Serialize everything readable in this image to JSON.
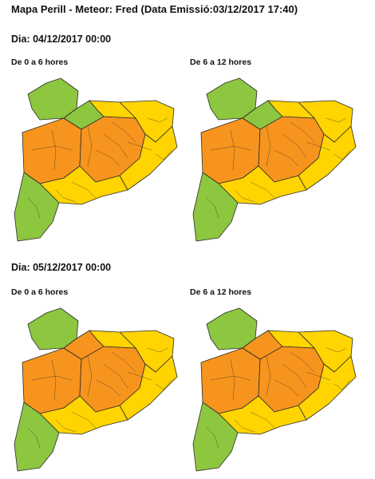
{
  "title": "Mapa Perill - Meteor: Fred (Data Emissió:03/12/2017 17:40)",
  "days": [
    {
      "label": "Dia: 04/12/2017 00:00",
      "periods": [
        {
          "label": "De 0 a 6 hores",
          "map": {
            "zones": {
              "nw": "green",
              "nw2": "green",
              "pyrenees_e": "yellow",
              "west": "orange",
              "center": "orange",
              "east": "yellow",
              "coast": "yellow",
              "ebre": "green",
              "south": "yellow"
            }
          }
        },
        {
          "label": "De 6 a 12 hores",
          "map": {
            "zones": {
              "nw": "green",
              "nw2": "green",
              "pyrenees_e": "yellow",
              "west": "orange",
              "center": "orange",
              "east": "yellow",
              "coast": "yellow",
              "ebre": "green",
              "south": "yellow"
            }
          }
        }
      ]
    },
    {
      "label": "Dia: 05/12/2017 00:00",
      "periods": [
        {
          "label": "De 0 a 6 hores",
          "map": {
            "zones": {
              "nw": "green",
              "nw2": "orange",
              "pyrenees_e": "yellow",
              "west": "orange",
              "center": "orange",
              "east": "yellow",
              "coast": "yellow",
              "ebre": "green",
              "south": "yellow"
            }
          }
        },
        {
          "label": "De 6 a 12 hores",
          "map": {
            "zones": {
              "nw": "green",
              "nw2": "orange",
              "pyrenees_e": "yellow",
              "west": "orange",
              "center": "orange",
              "east": "yellow",
              "coast": "yellow",
              "ebre": "green",
              "south": "yellow"
            }
          }
        }
      ]
    }
  ],
  "colors": {
    "green": "#8dc63f",
    "yellow": "#ffd400",
    "orange": "#f7941d",
    "border": "#2b2b2b"
  }
}
